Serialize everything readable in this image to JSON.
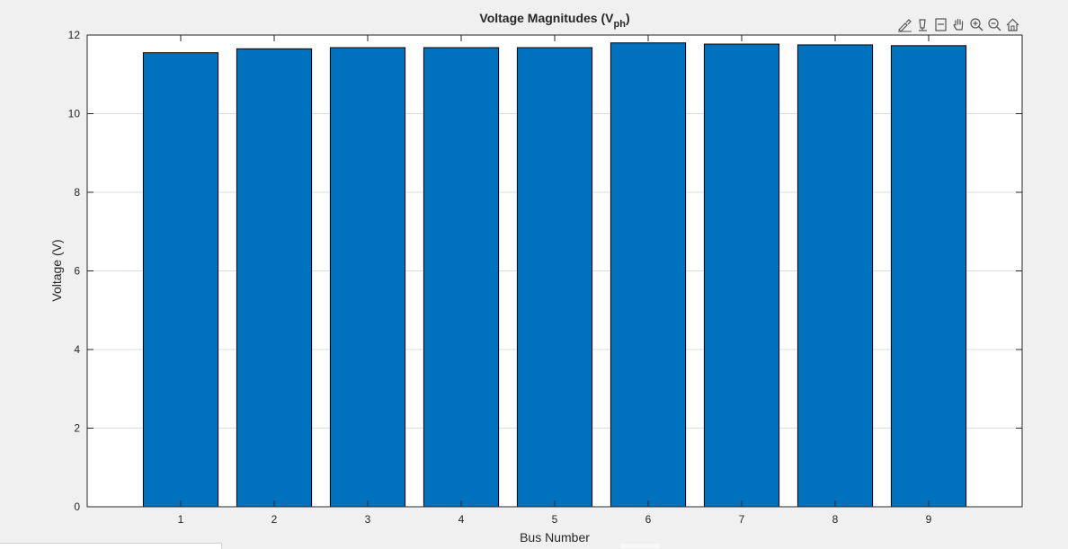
{
  "chart_data": {
    "type": "bar",
    "title": "Voltage Magnitudes (V",
    "title_subscript": "ph",
    "title_suffix": ")",
    "xlabel": "Bus Number",
    "ylabel": "Voltage (V)",
    "categories": [
      "1",
      "2",
      "3",
      "4",
      "5",
      "6",
      "7",
      "8",
      "9"
    ],
    "values": [
      11.55,
      11.65,
      11.68,
      11.68,
      11.68,
      11.8,
      11.77,
      11.75,
      11.73
    ],
    "xlim": [
      0,
      10
    ],
    "ylim": [
      0,
      12
    ],
    "yticks": [
      "0",
      "2",
      "4",
      "6",
      "8",
      "10",
      "12"
    ],
    "bar_color": "#0072BD",
    "grid": "y-major",
    "legend": "none"
  },
  "toolbar": {
    "icons": [
      "brush-icon",
      "data-tips-icon",
      "restore-view-icon",
      "pan-icon",
      "zoom-in-icon",
      "zoom-out-icon",
      "home-icon"
    ]
  }
}
